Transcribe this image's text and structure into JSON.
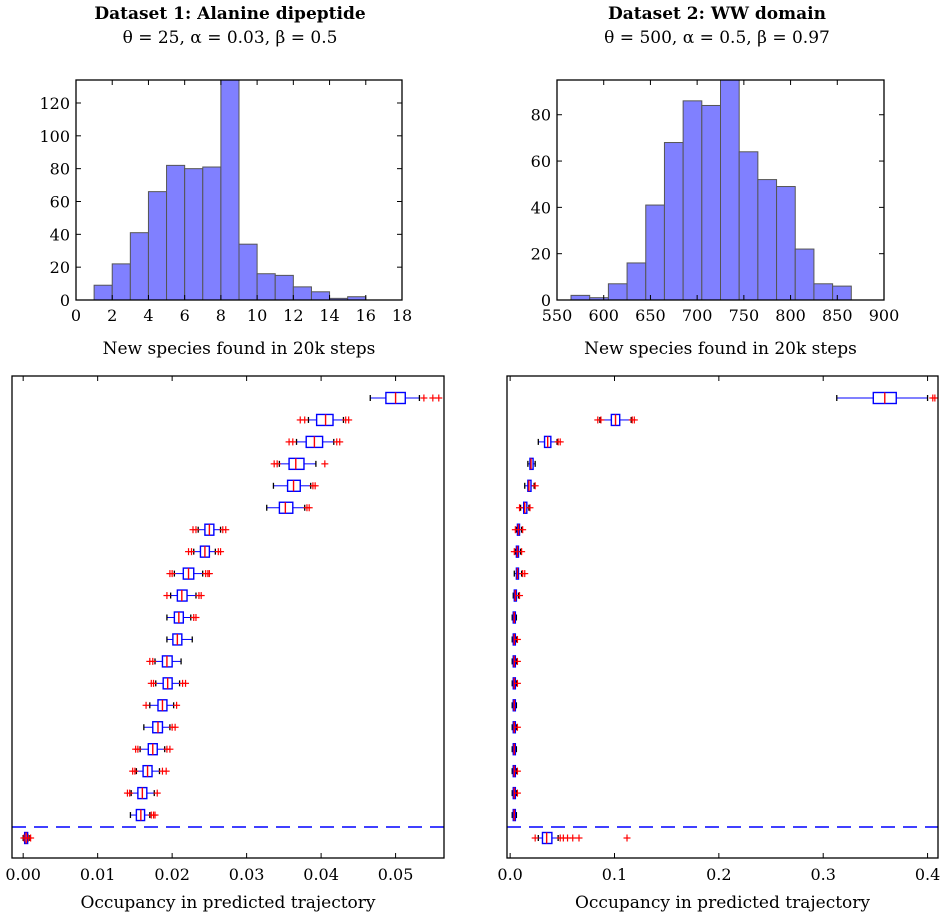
{
  "titles": {
    "left_main": "Dataset 1: Alanine dipeptide",
    "left_params": "θ = 25, α = 0.03, β = 0.5",
    "right_main": "Dataset 2: WW domain",
    "right_params": "θ = 500, α = 0.5, β = 0.97"
  },
  "colors": {
    "hist_fill": "#8080ff",
    "hist_edge": "#555555",
    "box_edge": "#0000ff",
    "median": "#ff0000",
    "flier": "#ff0000",
    "dashed_line": "#0000ff"
  },
  "chart_data": [
    {
      "type": "histogram",
      "xlabel": "New species found in 20k steps",
      "ylabel": "",
      "xlim": [
        0,
        18
      ],
      "ylim": [
        0,
        134
      ],
      "xticks": [
        0,
        2,
        4,
        6,
        8,
        10,
        12,
        14,
        16,
        18
      ],
      "yticks": [
        0,
        20,
        40,
        60,
        80,
        100,
        120
      ],
      "bin_edges": [
        1,
        2,
        3,
        4,
        5,
        6,
        7,
        8,
        9,
        10,
        11,
        12,
        13,
        14,
        15,
        16,
        17,
        18
      ],
      "counts": [
        9,
        22,
        41,
        66,
        82,
        80,
        81,
        134,
        34,
        16,
        15,
        8,
        5,
        1,
        2,
        0,
        0
      ]
    },
    {
      "type": "histogram",
      "xlabel": "New species found in 20k steps",
      "ylabel": "",
      "xlim": [
        550,
        900
      ],
      "ylim": [
        0,
        95
      ],
      "xticks": [
        550,
        600,
        650,
        700,
        750,
        800,
        850,
        900
      ],
      "yticks": [
        0,
        20,
        40,
        60,
        80
      ],
      "bin_edges": [
        565,
        585,
        605,
        625,
        645,
        665,
        685,
        705,
        725,
        745,
        765,
        785,
        805,
        825,
        845,
        865
      ],
      "counts": [
        2,
        1,
        7,
        16,
        41,
        68,
        86,
        84,
        95,
        64,
        52,
        49,
        22,
        7,
        6
      ]
    },
    {
      "type": "boxplot",
      "orientation": "horizontal",
      "xlabel": "Occupancy in predicted trajectory",
      "ylabel": "",
      "xlim": [
        -0.0015,
        0.0565
      ],
      "xticks": [
        0.0,
        0.01,
        0.02,
        0.03,
        0.04,
        0.05
      ],
      "xticklabels": [
        "0.00",
        "0.01",
        "0.02",
        "0.03",
        "0.04",
        "0.05"
      ],
      "reference_line": "dashed",
      "boxes": [
        {
          "wlo": 0.0466,
          "q1": 0.0487,
          "med": 0.05,
          "q3": 0.0513,
          "whi": 0.0532,
          "fliers": [
            0.0538,
            0.055,
            0.0558
          ]
        },
        {
          "wlo": 0.0383,
          "q1": 0.0394,
          "med": 0.0406,
          "q3": 0.0416,
          "whi": 0.043,
          "fliers": [
            0.0372,
            0.0378,
            0.0433,
            0.0437
          ]
        },
        {
          "wlo": 0.0367,
          "q1": 0.038,
          "med": 0.0391,
          "q3": 0.0402,
          "whi": 0.0417,
          "fliers": [
            0.0357,
            0.0362,
            0.0421,
            0.0425
          ]
        },
        {
          "wlo": 0.0344,
          "q1": 0.0357,
          "med": 0.0366,
          "q3": 0.0377,
          "whi": 0.0393,
          "fliers": [
            0.0337,
            0.0341,
            0.0405
          ]
        },
        {
          "wlo": 0.0336,
          "q1": 0.0355,
          "med": 0.0363,
          "q3": 0.0372,
          "whi": 0.0386,
          "fliers": [
            0.0389,
            0.0392
          ]
        },
        {
          "wlo": 0.0327,
          "q1": 0.0344,
          "med": 0.0352,
          "q3": 0.0362,
          "whi": 0.0378,
          "fliers": [
            0.0381,
            0.0384
          ]
        },
        {
          "wlo": 0.0235,
          "q1": 0.0244,
          "med": 0.025,
          "q3": 0.0256,
          "whi": 0.0265,
          "fliers": [
            0.0228,
            0.0232,
            0.0268,
            0.0272
          ]
        },
        {
          "wlo": 0.0229,
          "q1": 0.0238,
          "med": 0.0244,
          "q3": 0.025,
          "whi": 0.0258,
          "fliers": [
            0.0222,
            0.0226,
            0.0262,
            0.0265
          ]
        },
        {
          "wlo": 0.0203,
          "q1": 0.0215,
          "med": 0.0222,
          "q3": 0.0229,
          "whi": 0.0241,
          "fliers": [
            0.0197,
            0.02,
            0.0245,
            0.0248,
            0.025
          ]
        },
        {
          "wlo": 0.0198,
          "q1": 0.0207,
          "med": 0.0213,
          "q3": 0.022,
          "whi": 0.0232,
          "fliers": [
            0.0193,
            0.0236,
            0.0239
          ]
        },
        {
          "wlo": 0.0193,
          "q1": 0.0203,
          "med": 0.0209,
          "q3": 0.0215,
          "whi": 0.0225,
          "fliers": [
            0.0229,
            0.0232
          ]
        },
        {
          "wlo": 0.0193,
          "q1": 0.0201,
          "med": 0.0207,
          "q3": 0.0213,
          "whi": 0.0227,
          "fliers": []
        },
        {
          "wlo": 0.0177,
          "q1": 0.0187,
          "med": 0.0193,
          "q3": 0.02,
          "whi": 0.0212,
          "fliers": [
            0.017,
            0.0174
          ]
        },
        {
          "wlo": 0.0178,
          "q1": 0.0188,
          "med": 0.0194,
          "q3": 0.02,
          "whi": 0.021,
          "fliers": [
            0.0172,
            0.0175,
            0.0214,
            0.0218
          ]
        },
        {
          "wlo": 0.017,
          "q1": 0.0181,
          "med": 0.0187,
          "q3": 0.0193,
          "whi": 0.0202,
          "fliers": [
            0.0165,
            0.0206
          ]
        },
        {
          "wlo": 0.0162,
          "q1": 0.0174,
          "med": 0.0181,
          "q3": 0.0187,
          "whi": 0.0197,
          "fliers": [
            0.02,
            0.0204
          ]
        },
        {
          "wlo": 0.0157,
          "q1": 0.0168,
          "med": 0.0174,
          "q3": 0.018,
          "whi": 0.019,
          "fliers": [
            0.0151,
            0.0154,
            0.0193,
            0.0197
          ]
        },
        {
          "wlo": 0.0152,
          "q1": 0.0161,
          "med": 0.0167,
          "q3": 0.0173,
          "whi": 0.0183,
          "fliers": [
            0.0147,
            0.015,
            0.0187,
            0.0192
          ]
        },
        {
          "wlo": 0.0145,
          "q1": 0.0154,
          "med": 0.016,
          "q3": 0.0166,
          "whi": 0.0176,
          "fliers": [
            0.014,
            0.0143,
            0.018
          ]
        },
        {
          "wlo": 0.0144,
          "q1": 0.0152,
          "med": 0.0158,
          "q3": 0.0163,
          "whi": 0.017,
          "fliers": [
            0.0172,
            0.0175,
            0.0177
          ]
        },
        {
          "wlo": 0.0,
          "q1": 0.0002,
          "med": 0.0004,
          "q3": 0.0006,
          "whi": 0.0009,
          "fliers": [
            0.0001,
            0.0007,
            0.001
          ]
        }
      ]
    },
    {
      "type": "boxplot",
      "orientation": "horizontal",
      "xlabel": "Occupancy in predicted trajectory",
      "ylabel": "",
      "xlim": [
        -0.003,
        0.41
      ],
      "xticks": [
        0.0,
        0.1,
        0.2,
        0.3,
        0.4
      ],
      "xticklabels": [
        "0.0",
        "0.1",
        "0.2",
        "0.3",
        "0.4"
      ],
      "reference_line": "dashed",
      "boxes": [
        {
          "wlo": 0.313,
          "q1": 0.348,
          "med": 0.359,
          "q3": 0.37,
          "whi": 0.4,
          "fliers": [
            0.405,
            0.407
          ]
        },
        {
          "wlo": 0.086,
          "q1": 0.097,
          "med": 0.101,
          "q3": 0.105,
          "whi": 0.116,
          "fliers": [
            0.084,
            0.087,
            0.117,
            0.119
          ]
        },
        {
          "wlo": 0.027,
          "q1": 0.033,
          "med": 0.036,
          "q3": 0.039,
          "whi": 0.045,
          "fliers": [
            0.046,
            0.048
          ]
        },
        {
          "wlo": 0.017,
          "q1": 0.019,
          "med": 0.02,
          "q3": 0.022,
          "whi": 0.024,
          "fliers": []
        },
        {
          "wlo": 0.014,
          "q1": 0.017,
          "med": 0.018,
          "q3": 0.02,
          "whi": 0.023,
          "fliers": [
            0.024
          ]
        },
        {
          "wlo": 0.01,
          "q1": 0.013,
          "med": 0.014,
          "q3": 0.016,
          "whi": 0.018,
          "fliers": [
            0.009,
            0.019
          ]
        },
        {
          "wlo": 0.006,
          "q1": 0.007,
          "med": 0.008,
          "q3": 0.009,
          "whi": 0.011,
          "fliers": [
            0.005,
            0.012
          ]
        },
        {
          "wlo": 0.005,
          "q1": 0.006,
          "med": 0.007,
          "q3": 0.008,
          "whi": 0.01,
          "fliers": [
            0.004,
            0.011
          ]
        },
        {
          "wlo": 0.004,
          "q1": 0.006,
          "med": 0.007,
          "q3": 0.008,
          "whi": 0.011,
          "fliers": [
            0.012,
            0.014
          ]
        },
        {
          "wlo": 0.003,
          "q1": 0.004,
          "med": 0.005,
          "q3": 0.006,
          "whi": 0.008,
          "fliers": [
            0.009
          ]
        },
        {
          "wlo": 0.002,
          "q1": 0.003,
          "med": 0.004,
          "q3": 0.005,
          "whi": 0.006,
          "fliers": []
        },
        {
          "wlo": 0.002,
          "q1": 0.003,
          "med": 0.004,
          "q3": 0.005,
          "whi": 0.006,
          "fliers": [
            0.007
          ]
        },
        {
          "wlo": 0.002,
          "q1": 0.003,
          "med": 0.004,
          "q3": 0.005,
          "whi": 0.006,
          "fliers": [
            0.007
          ]
        },
        {
          "wlo": 0.002,
          "q1": 0.003,
          "med": 0.004,
          "q3": 0.005,
          "whi": 0.006,
          "fliers": [
            0.007
          ]
        },
        {
          "wlo": 0.002,
          "q1": 0.003,
          "med": 0.004,
          "q3": 0.005,
          "whi": 0.006,
          "fliers": []
        },
        {
          "wlo": 0.002,
          "q1": 0.003,
          "med": 0.004,
          "q3": 0.005,
          "whi": 0.006,
          "fliers": [
            0.007
          ]
        },
        {
          "wlo": 0.002,
          "q1": 0.003,
          "med": 0.004,
          "q3": 0.005,
          "whi": 0.006,
          "fliers": []
        },
        {
          "wlo": 0.002,
          "q1": 0.003,
          "med": 0.004,
          "q3": 0.005,
          "whi": 0.006,
          "fliers": [
            0.007
          ]
        },
        {
          "wlo": 0.002,
          "q1": 0.003,
          "med": 0.004,
          "q3": 0.005,
          "whi": 0.006,
          "fliers": [
            0.007
          ]
        },
        {
          "wlo": 0.002,
          "q1": 0.003,
          "med": 0.004,
          "q3": 0.005,
          "whi": 0.006,
          "fliers": []
        },
        {
          "wlo": 0.027,
          "q1": 0.031,
          "med": 0.035,
          "q3": 0.04,
          "whi": 0.046,
          "fliers": [
            0.024,
            0.048,
            0.051,
            0.055,
            0.06,
            0.066,
            0.112
          ]
        }
      ]
    }
  ]
}
